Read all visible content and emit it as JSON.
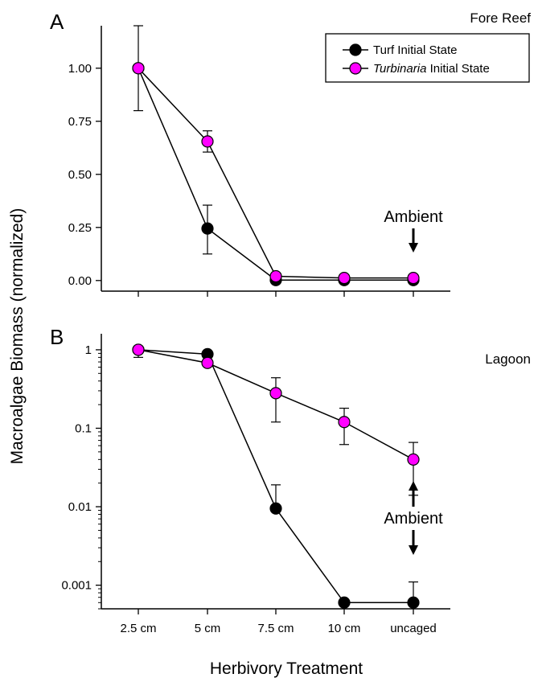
{
  "figure": {
    "ylabel": "Macroalgae Biomass (normalized)",
    "xlabel": "Herbivory Treatment"
  },
  "colors": {
    "turf": "#000000",
    "turbinaria": "#ff00ff"
  },
  "chart_data": [
    {
      "type": "line",
      "panel_label": "A",
      "title": "Fore Reef",
      "categories": [
        "2.5 cm",
        "5 cm",
        "7.5 cm",
        "10 cm",
        "uncaged"
      ],
      "ylim": [
        -0.05,
        1.2
      ],
      "yscale": "linear",
      "yticks": [
        0.0,
        0.25,
        0.5,
        0.75,
        1.0
      ],
      "ytick_labels": [
        "0.00",
        "0.25",
        "0.50",
        "0.75",
        "1.00"
      ],
      "show_x_tick_labels": false,
      "legend": {
        "placement": "top-right",
        "entries": [
          {
            "prefix": "Turf Initial State",
            "italic": "",
            "suffix": ""
          },
          {
            "prefix": "",
            "italic": "Turbinaria",
            "suffix": " Initial State"
          }
        ]
      },
      "series": [
        {
          "name": "Turf Initial State",
          "color": "#000000",
          "values": [
            1.0,
            0.245,
            0.002,
            0.002,
            0.002
          ],
          "err_upper": [
            1.0,
            0.355,
            0.002,
            0.002,
            0.002
          ],
          "err_lower": [
            1.0,
            0.125,
            0.002,
            0.002,
            0.002
          ]
        },
        {
          "name": "Turbinaria Initial State",
          "color": "#ff00ff",
          "values": [
            1.0,
            0.655,
            0.02,
            0.012,
            0.012
          ],
          "err_upper": [
            1.2,
            0.705,
            0.02,
            0.012,
            0.012
          ],
          "err_lower": [
            0.8,
            0.605,
            0.02,
            0.012,
            0.012
          ]
        }
      ],
      "annotation": {
        "text": "Ambient",
        "category": "uncaged",
        "arrow": "down"
      }
    },
    {
      "type": "line",
      "panel_label": "B",
      "title": "Lagoon",
      "categories": [
        "2.5 cm",
        "5 cm",
        "7.5 cm",
        "10 cm",
        "uncaged"
      ],
      "ylim": [
        0.0005,
        1.6
      ],
      "yscale": "log",
      "yticks": [
        0.001,
        0.01,
        0.1,
        1
      ],
      "ytick_labels": [
        "0.001",
        "0.01",
        "0.1",
        "1"
      ],
      "show_x_tick_labels": true,
      "series": [
        {
          "name": "Turf Initial State",
          "color": "#000000",
          "values": [
            1.0,
            0.88,
            0.0095,
            0.0006,
            0.0006
          ],
          "err_upper": [
            1.0,
            0.88,
            0.019,
            0.0006,
            0.0011
          ],
          "err_lower": [
            1.0,
            0.88,
            0.0095,
            0.0006,
            0.0006
          ]
        },
        {
          "name": "Turbinaria Initial State",
          "color": "#ff00ff",
          "values": [
            1.0,
            0.68,
            0.28,
            0.12,
            0.04
          ],
          "err_upper": [
            1.0,
            0.68,
            0.44,
            0.18,
            0.066
          ],
          "err_lower": [
            0.8,
            0.68,
            0.12,
            0.062,
            0.014
          ]
        }
      ],
      "annotation": {
        "text": "Ambient",
        "category": "uncaged",
        "arrow": "up-and-down"
      }
    }
  ]
}
